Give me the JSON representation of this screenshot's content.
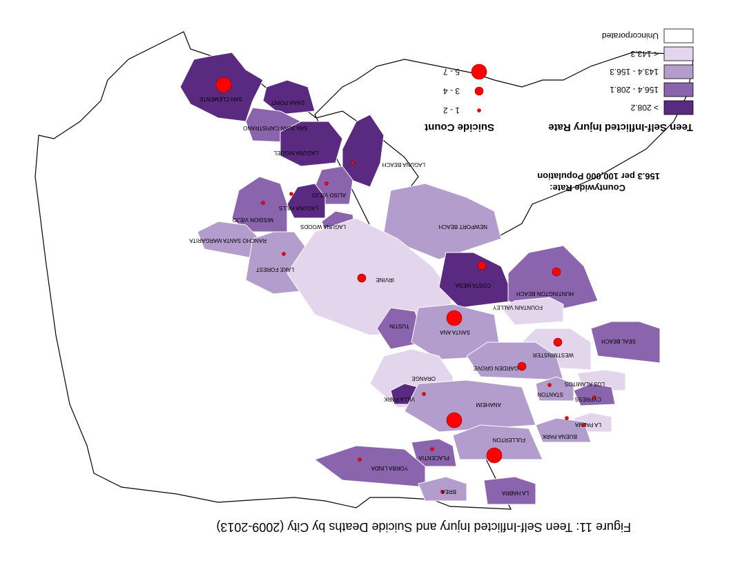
{
  "title": "Figure 11: Teen Self-Inflicted Injury and Suicide Deaths by City (2009-2013)",
  "countywide_rate": {
    "heading": "Countywide Rate:",
    "value": "156.3 per 100,000 Population"
  },
  "rate_legend": {
    "heading": "Teen Self-Inflicted Injury Rate",
    "classes": [
      {
        "label": "< 143.3",
        "color": "#e2d5ec"
      },
      {
        "label": "143.4 - 156.3",
        "color": "#b29dcc"
      },
      {
        "label": "156.4 - 208.1",
        "color": "#8a64ad"
      },
      {
        "label": "> 208.2",
        "color": "#5a2a80"
      },
      {
        "label": "Unincorporated",
        "color": "#ffffff"
      }
    ]
  },
  "count_legend": {
    "heading": "Suicide Count",
    "classes": [
      {
        "label": "1 - 2",
        "size": "small"
      },
      {
        "label": "3 - 4",
        "size": "medium"
      },
      {
        "label": "5 - 7",
        "size": "large"
      }
    ],
    "marker_color": "#ff0000"
  },
  "cities": [
    {
      "name": "SAN CLEMENTE",
      "rate_class": "> 208.2",
      "suicide_count": "5 - 7"
    },
    {
      "name": "DANA POINT",
      "rate_class": "> 208.2",
      "suicide_count": null
    },
    {
      "name": "SAN JUAN CAPISTRANO",
      "rate_class": "156.4 - 208.1",
      "suicide_count": null
    },
    {
      "name": "LAGUNA NIGUEL",
      "rate_class": "> 208.2",
      "suicide_count": null
    },
    {
      "name": "LAGUNA BEACH",
      "rate_class": "> 208.2",
      "suicide_count": "1 - 2"
    },
    {
      "name": "ALISO VIEJO",
      "rate_class": "156.4 - 208.1",
      "suicide_count": "1 - 2"
    },
    {
      "name": "LAGUNA HILLS",
      "rate_class": "> 208.2",
      "suicide_count": "1 - 2"
    },
    {
      "name": "MISSION VIEJO",
      "rate_class": "156.4 - 208.1",
      "suicide_count": "1 - 2"
    },
    {
      "name": "LAGUNA WOODS",
      "rate_class": "156.4 - 208.1",
      "suicide_count": null
    },
    {
      "name": "RANCHO SANTA MARGARITA",
      "rate_class": "143.4 - 156.3",
      "suicide_count": null
    },
    {
      "name": "LAKE FOREST",
      "rate_class": "143.4 - 156.3",
      "suicide_count": "1 - 2"
    },
    {
      "name": "NEWPORT BEACH",
      "rate_class": "143.4 - 156.3",
      "suicide_count": null
    },
    {
      "name": "IRVINE",
      "rate_class": "< 143.3",
      "suicide_count": "3 - 4"
    },
    {
      "name": "COSTA MESA",
      "rate_class": "> 208.2",
      "suicide_count": "3 - 4"
    },
    {
      "name": "HUNTINGTON BEACH",
      "rate_class": "156.4 - 208.1",
      "suicide_count": "3 - 4"
    },
    {
      "name": "FOUNTAIN VALLEY",
      "rate_class": "< 143.3",
      "suicide_count": null
    },
    {
      "name": "TUSTIN",
      "rate_class": "156.4 - 208.1",
      "suicide_count": null
    },
    {
      "name": "SANTA ANA",
      "rate_class": "143.4 - 156.3",
      "suicide_count": "5 - 7"
    },
    {
      "name": "SEAL BEACH",
      "rate_class": "156.4 - 208.1",
      "suicide_count": null
    },
    {
      "name": "WESTMINSTER",
      "rate_class": "< 143.3",
      "suicide_count": "3 - 4"
    },
    {
      "name": "GARDEN GROVE",
      "rate_class": "143.4 - 156.3",
      "suicide_count": "3 - 4"
    },
    {
      "name": "ORANGE",
      "rate_class": "< 143.3",
      "suicide_count": "1 - 2"
    },
    {
      "name": "VILLA PARK",
      "rate_class": "> 208.2",
      "suicide_count": null
    },
    {
      "name": "LOS ALAMITOS",
      "rate_class": "< 143.3",
      "suicide_count": null
    },
    {
      "name": "STANTON",
      "rate_class": "143.4 - 156.3",
      "suicide_count": "1 - 2"
    },
    {
      "name": "CYPRESS",
      "rate_class": "156.4 - 208.1",
      "suicide_count": "1 - 2"
    },
    {
      "name": "ANAHEIM",
      "rate_class": "143.4 - 156.3",
      "suicide_count": "5 - 7"
    },
    {
      "name": "LA PALMA",
      "rate_class": "< 143.3",
      "suicide_count": "1 - 2"
    },
    {
      "name": "BUENA PARK",
      "rate_class": "143.4 - 156.3",
      "suicide_count": "1 - 2"
    },
    {
      "name": "FULLERTON",
      "rate_class": "143.4 - 156.3",
      "suicide_count": "5 - 7"
    },
    {
      "name": "PLACENTIA",
      "rate_class": "156.4 - 208.1",
      "suicide_count": "1 - 2"
    },
    {
      "name": "YORBA LINDA",
      "rate_class": "156.4 - 208.1",
      "suicide_count": "1 - 2"
    },
    {
      "name": "BREA",
      "rate_class": "143.4 - 156.3",
      "suicide_count": "1 - 2"
    },
    {
      "name": "LA HABRA",
      "rate_class": "156.4 - 208.1",
      "suicide_count": null
    }
  ]
}
